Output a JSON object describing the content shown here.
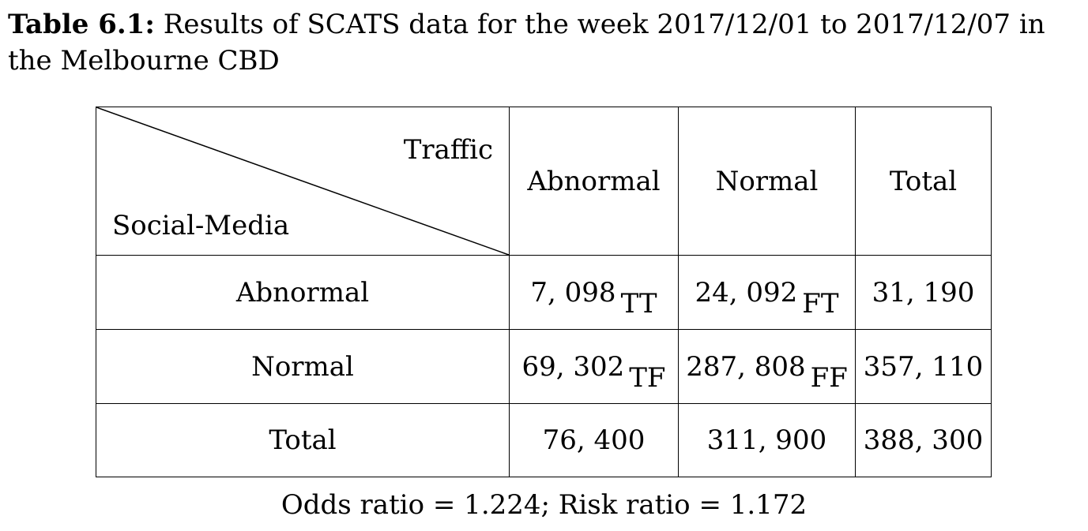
{
  "caption": {
    "label": "Table 6.1:",
    "text": "Results of SCATS data for the week 2017/12/01 to 2017/12/07 in the Melbourne CBD"
  },
  "table": {
    "corner": {
      "top_right": "Traffic",
      "bottom_left": "Social-Media"
    },
    "columns": [
      "Abnormal",
      "Normal",
      "Total"
    ],
    "rows": [
      {
        "label": "Abnormal",
        "cells": [
          {
            "value": "7, 098",
            "tag": "TT"
          },
          {
            "value": "24, 092",
            "tag": "FT"
          },
          {
            "value": "31, 190",
            "tag": ""
          }
        ]
      },
      {
        "label": "Normal",
        "cells": [
          {
            "value": "69, 302",
            "tag": "TF"
          },
          {
            "value": "287, 808",
            "tag": "FF"
          },
          {
            "value": "357, 110",
            "tag": ""
          }
        ]
      },
      {
        "label": "Total",
        "cells": [
          {
            "value": "76, 400",
            "tag": ""
          },
          {
            "value": "311, 900",
            "tag": ""
          },
          {
            "value": "388, 300",
            "tag": ""
          }
        ]
      }
    ]
  },
  "footer": "Odds ratio = 1.224; Risk ratio = 1.172"
}
